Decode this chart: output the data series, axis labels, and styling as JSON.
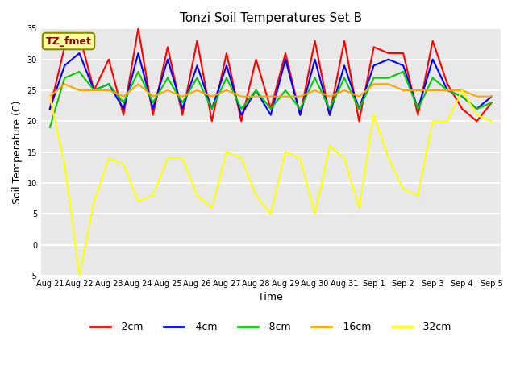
{
  "title": "Tonzi Soil Temperatures Set B",
  "xlabel": "Time",
  "ylabel": "Soil Temperature (C)",
  "ylim": [
    -5,
    35
  ],
  "yticks": [
    -5,
    0,
    5,
    10,
    15,
    20,
    25,
    30,
    35
  ],
  "x_labels": [
    "Aug 21",
    "Aug 22",
    "Aug 23",
    "Aug 24",
    "Aug 25",
    "Aug 26",
    "Aug 27",
    "Aug 28",
    "Aug 29",
    "Aug 30",
    "Aug 31",
    "Sep 1",
    "Sep 2",
    "Sep 3",
    "Sep 4",
    "Sep 5"
  ],
  "annotation_label": "TZ_fmet",
  "annotation_color": "#8B0000",
  "annotation_bg": "#FFFF99",
  "annotation_edge": "#8B8B00",
  "series_2cm": [
    22,
    32,
    34,
    25,
    30,
    21,
    35,
    21,
    32,
    21,
    33,
    20,
    31,
    20,
    30,
    22,
    31,
    21,
    33,
    21,
    33,
    20,
    32,
    31,
    31,
    21,
    33,
    26,
    22,
    20,
    23
  ],
  "series_4cm": [
    22,
    29,
    31,
    25,
    26,
    22,
    31,
    22,
    30,
    22,
    29,
    22,
    29,
    21,
    25,
    21,
    30,
    21,
    30,
    21,
    29,
    22,
    29,
    30,
    29,
    22,
    30,
    25,
    24,
    22,
    24
  ],
  "series_8cm": [
    19,
    27,
    28,
    25,
    26,
    23,
    28,
    23,
    27,
    23,
    27,
    22,
    27,
    22,
    25,
    22,
    25,
    22,
    27,
    22,
    27,
    22,
    27,
    27,
    28,
    22,
    27,
    25,
    24,
    22,
    23
  ],
  "series_16cm": [
    24,
    26,
    25,
    25,
    25,
    24,
    26,
    24,
    25,
    24,
    25,
    24,
    25,
    24,
    24,
    24,
    24,
    24,
    25,
    24,
    25,
    24,
    26,
    26,
    25,
    25,
    25,
    25,
    25,
    24,
    24
  ],
  "series_32cm": [
    24,
    13,
    -5,
    7,
    14,
    13,
    7,
    8,
    14,
    14,
    8,
    6,
    15,
    14,
    8,
    5,
    15,
    14,
    5,
    16,
    14,
    6,
    21,
    14,
    9,
    8,
    20,
    20,
    25,
    21,
    20
  ],
  "color_2cm": "#FF0000",
  "color_4cm": "#0000FF",
  "color_8cm": "#00CC00",
  "color_16cm": "#FFA500",
  "color_32cm": "#FFFF00",
  "bg_color": "#E8E8E8",
  "fig_bg": "#FFFFFF",
  "linewidth": 1.5,
  "title_fontsize": 11,
  "tick_fontsize": 7,
  "ylabel_fontsize": 9,
  "xlabel_fontsize": 9,
  "legend_fontsize": 9
}
